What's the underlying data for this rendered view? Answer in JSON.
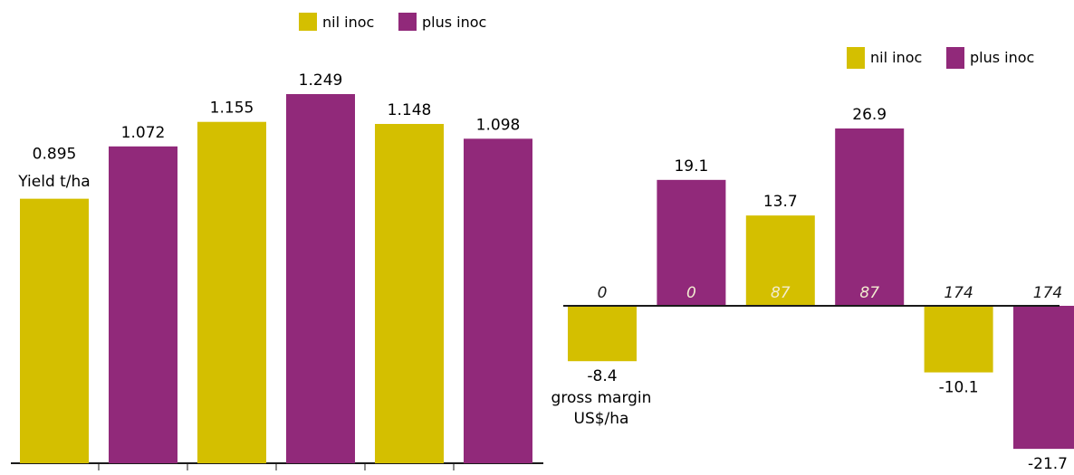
{
  "colors": {
    "nil": "#d4bf00",
    "plus": "#91297a",
    "axis": "#1a1a1a",
    "cat_on_dark": "#f2ecd0"
  },
  "chart_data": [
    {
      "type": "bar",
      "ylabel": "Yield t/ha",
      "legend": {
        "placement": "top-center",
        "entries": [
          "nil inoc",
          "plus inoc"
        ]
      },
      "categories": [
        "",
        "",
        "",
        "",
        "",
        ""
      ],
      "values": [
        0.895,
        1.072,
        1.155,
        1.249,
        1.148,
        1.098
      ],
      "value_labels": [
        "0.895",
        "1.072",
        "1.155",
        "1.249",
        "1.148",
        "1.098"
      ],
      "series_of_bar": [
        "nil",
        "plus",
        "nil",
        "plus",
        "nil",
        "plus"
      ],
      "ylim": [
        0,
        1.249
      ],
      "grid": false
    },
    {
      "type": "bar",
      "ylabel": "gross margin US$/ha",
      "legend": {
        "placement": "top-right",
        "entries": [
          "nil inoc",
          "plus inoc"
        ]
      },
      "categories": [
        "0",
        "0",
        "87",
        "87",
        "174",
        "174"
      ],
      "values": [
        -8.4,
        19.1,
        13.7,
        26.9,
        -10.1,
        -21.7
      ],
      "value_labels": [
        "-8.4",
        "19.1",
        "13.7",
        "26.9",
        "-10.1",
        "-21.7"
      ],
      "series_of_bar": [
        "nil",
        "plus",
        "nil",
        "plus",
        "nil",
        "plus"
      ],
      "ylim": [
        -21.7,
        26.9
      ],
      "grid": false
    }
  ],
  "labels": {
    "yield_unit": "Yield t/ha",
    "gm_line1": "gross margin",
    "gm_line2": "US$/ha",
    "legend_nil": "nil inoc",
    "legend_plus": "plus inoc"
  }
}
